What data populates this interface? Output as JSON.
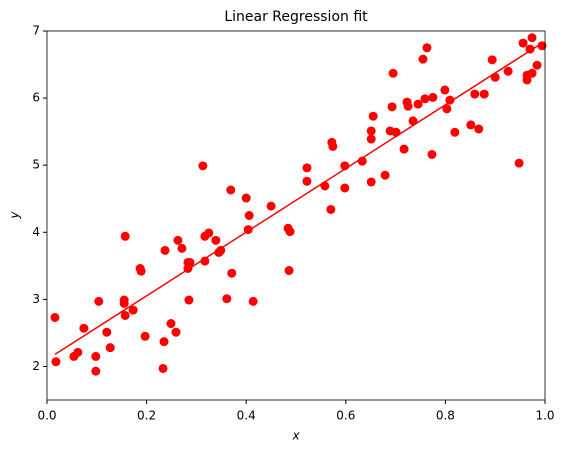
{
  "chart_data": {
    "type": "scatter",
    "title": "Linear Regression fit",
    "xlabel": "x",
    "ylabel": "y",
    "xlim": [
      0,
      1
    ],
    "ylim": [
      1.5,
      7
    ],
    "xticks": [
      {
        "value": 0,
        "label": "0.0"
      },
      {
        "value": 0.2,
        "label": "0.2"
      },
      {
        "value": 0.4,
        "label": "0.4"
      },
      {
        "value": 0.6,
        "label": "0.6"
      },
      {
        "value": 0.8,
        "label": "0.8"
      },
      {
        "value": 1,
        "label": "1.0"
      }
    ],
    "yticks": [
      2,
      3,
      4,
      5,
      6,
      7
    ],
    "grid": false,
    "series": [
      {
        "type": "scatter",
        "color": "#ff0000",
        "x": [
          0.016,
          0.018,
          0.054,
          0.062,
          0.074,
          0.098,
          0.098,
          0.104,
          0.12,
          0.127,
          0.157,
          0.155,
          0.155,
          0.157,
          0.173,
          0.187,
          0.189,
          0.197,
          0.233,
          0.235,
          0.237,
          0.249,
          0.259,
          0.263,
          0.271,
          0.283,
          0.283,
          0.287,
          0.285,
          0.313,
          0.317,
          0.317,
          0.325,
          0.339,
          0.345,
          0.349,
          0.361,
          0.369,
          0.371,
          0.4,
          0.404,
          0.406,
          0.414,
          0.45,
          0.484,
          0.488,
          0.486,
          0.522,
          0.522,
          0.558,
          0.57,
          0.572,
          0.574,
          0.598,
          0.598,
          0.633,
          0.651,
          0.651,
          0.655,
          0.651,
          0.679,
          0.689,
          0.695,
          0.693,
          0.701,
          0.717,
          0.723,
          0.725,
          0.735,
          0.745,
          0.755,
          0.763,
          0.759,
          0.773,
          0.775,
          0.799,
          0.803,
          0.809,
          0.819,
          0.851,
          0.859,
          0.867,
          0.878,
          0.894,
          0.9,
          0.926,
          0.948,
          0.956,
          0.964,
          0.964,
          0.97,
          0.974,
          0.974,
          0.984,
          0.994
        ],
        "values": [
          2.73,
          2.07,
          2.15,
          2.21,
          2.57,
          1.93,
          2.15,
          2.97,
          2.51,
          2.28,
          3.94,
          2.99,
          2.94,
          2.76,
          2.84,
          3.46,
          3.42,
          2.45,
          1.97,
          2.37,
          3.73,
          2.64,
          2.51,
          3.88,
          3.76,
          3.55,
          3.46,
          3.55,
          2.99,
          4.99,
          3.57,
          3.94,
          3.99,
          3.88,
          3.7,
          3.73,
          3.01,
          4.63,
          3.39,
          4.51,
          4.04,
          4.25,
          2.97,
          4.39,
          4.06,
          4.01,
          3.43,
          4.76,
          4.96,
          4.69,
          4.34,
          5.34,
          5.28,
          4.99,
          4.66,
          5.06,
          5.51,
          5.39,
          5.73,
          4.75,
          4.85,
          5.51,
          6.37,
          5.87,
          5.49,
          5.24,
          5.94,
          5.88,
          5.66,
          5.91,
          6.58,
          6.75,
          5.99,
          5.16,
          6.01,
          6.12,
          5.84,
          5.97,
          5.49,
          5.6,
          6.06,
          5.54,
          6.06,
          6.57,
          6.31,
          6.4,
          5.03,
          6.82,
          6.34,
          6.27,
          6.73,
          6.9,
          6.37,
          6.49,
          6.78
        ]
      },
      {
        "type": "line",
        "color": "#ff0000",
        "x": [
          0.016,
          0.994
        ],
        "values": [
          2.18,
          6.82
        ]
      }
    ]
  }
}
